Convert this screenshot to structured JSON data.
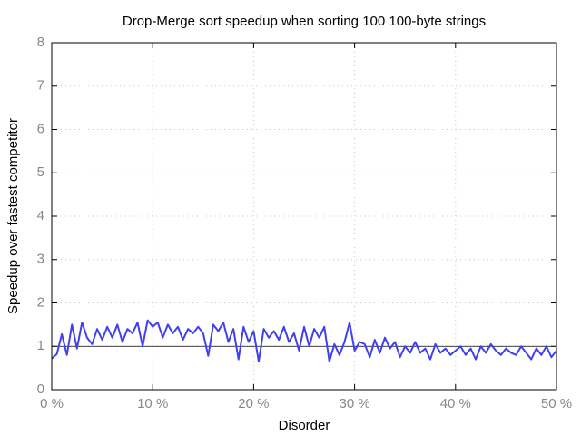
{
  "chart_data": {
    "type": "line",
    "title": "Drop-Merge sort speedup when sorting 100 100-byte strings",
    "x_label": "Disorder",
    "y_label": "Speedup over fastest competitor",
    "xlim": [
      0,
      50
    ],
    "ylim": [
      0,
      8
    ],
    "xticks": [
      {
        "value": 0,
        "label": "0 %"
      },
      {
        "value": 10,
        "label": "10 %"
      },
      {
        "value": 20,
        "label": "20 %"
      },
      {
        "value": 30,
        "label": "30 %"
      },
      {
        "value": 40,
        "label": "40 %"
      },
      {
        "value": 50,
        "label": "50 %"
      }
    ],
    "yticks": [
      0,
      1,
      2,
      3,
      4,
      5,
      6,
      7,
      8
    ],
    "grid": true,
    "reference_line": 1,
    "x": [
      0,
      0.5,
      1,
      1.5,
      2,
      2.5,
      3,
      3.5,
      4,
      4.5,
      5,
      5.5,
      6,
      6.5,
      7,
      7.5,
      8,
      8.5,
      9,
      9.5,
      10,
      10.5,
      11,
      11.5,
      12,
      12.5,
      13,
      13.5,
      14,
      14.5,
      15,
      15.5,
      16,
      16.5,
      17,
      17.5,
      18,
      18.5,
      19,
      19.5,
      20,
      20.5,
      21,
      21.5,
      22,
      22.5,
      23,
      23.5,
      24,
      24.5,
      25,
      25.5,
      26,
      26.5,
      27,
      27.5,
      28,
      28.5,
      29,
      29.5,
      30,
      30.5,
      31,
      31.5,
      32,
      32.5,
      33,
      33.5,
      34,
      34.5,
      35,
      35.5,
      36,
      36.5,
      37,
      37.5,
      38,
      38.5,
      39,
      39.5,
      40,
      40.5,
      41,
      41.5,
      42,
      42.5,
      43,
      43.5,
      44,
      44.5,
      45,
      45.5,
      46,
      46.5,
      47,
      47.5,
      48,
      48.5,
      49,
      49.5,
      50
    ],
    "series": [
      {
        "color": "#4040ee",
        "values": [
          0.72,
          0.82,
          1.28,
          0.8,
          1.5,
          0.95,
          1.55,
          1.2,
          1.05,
          1.4,
          1.15,
          1.45,
          1.2,
          1.5,
          1.1,
          1.4,
          1.3,
          1.55,
          1.0,
          1.6,
          1.45,
          1.55,
          1.2,
          1.5,
          1.3,
          1.45,
          1.15,
          1.4,
          1.3,
          1.45,
          1.3,
          0.78,
          1.5,
          1.35,
          1.55,
          1.1,
          1.4,
          0.7,
          1.45,
          1.1,
          1.35,
          0.65,
          1.4,
          1.2,
          1.35,
          1.15,
          1.45,
          1.1,
          1.3,
          0.9,
          1.45,
          1.0,
          1.4,
          1.2,
          1.45,
          0.65,
          1.05,
          0.8,
          1.1,
          1.55,
          0.9,
          1.1,
          1.05,
          0.75,
          1.15,
          0.85,
          1.2,
          0.95,
          1.1,
          0.75,
          1.0,
          0.85,
          1.1,
          0.85,
          0.95,
          0.7,
          1.05,
          0.85,
          0.95,
          0.8,
          0.9,
          1.0,
          0.8,
          0.95,
          0.7,
          1.0,
          0.85,
          1.05,
          0.9,
          0.8,
          0.95,
          0.85,
          0.8,
          1.0,
          0.85,
          0.7,
          0.95,
          0.8,
          1.0,
          0.75,
          0.9
        ]
      }
    ]
  }
}
